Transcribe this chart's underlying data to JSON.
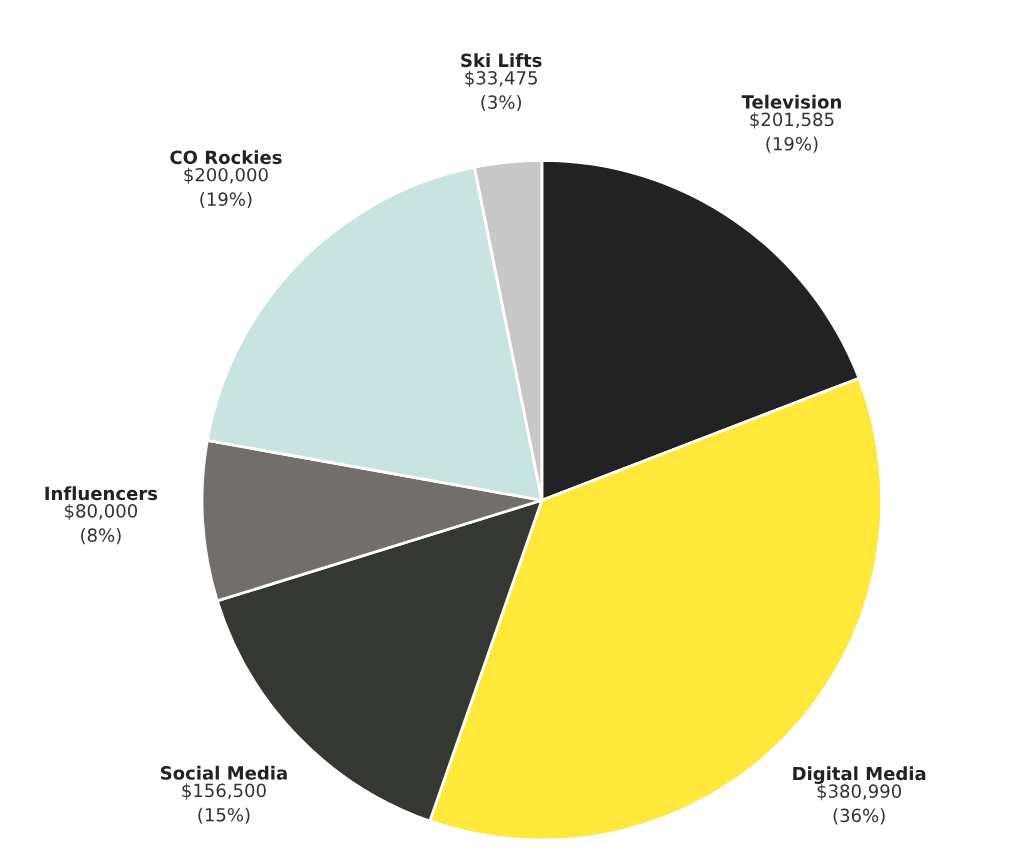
{
  "chart_data": {
    "type": "pie",
    "categories": [
      "Television",
      "Digital Media",
      "Social Media",
      "Influencers",
      "CO Rockies",
      "Ski Lifts"
    ],
    "values": [
      201585,
      380990,
      156500,
      80000,
      200000,
      33475
    ],
    "colors": [
      "#222222",
      "#ffe83a",
      "#353733",
      "#726e6c",
      "#c7e4e1",
      "#c8c8c8"
    ],
    "value_labels": [
      "$201,585\n(19%)",
      "$380,990\n(36%)",
      "$156,500\n(15%)",
      "$80,000\n(8%)",
      "$200,000\n(19%)",
      "$33,475\n(3%)"
    ],
    "legend": false
  }
}
